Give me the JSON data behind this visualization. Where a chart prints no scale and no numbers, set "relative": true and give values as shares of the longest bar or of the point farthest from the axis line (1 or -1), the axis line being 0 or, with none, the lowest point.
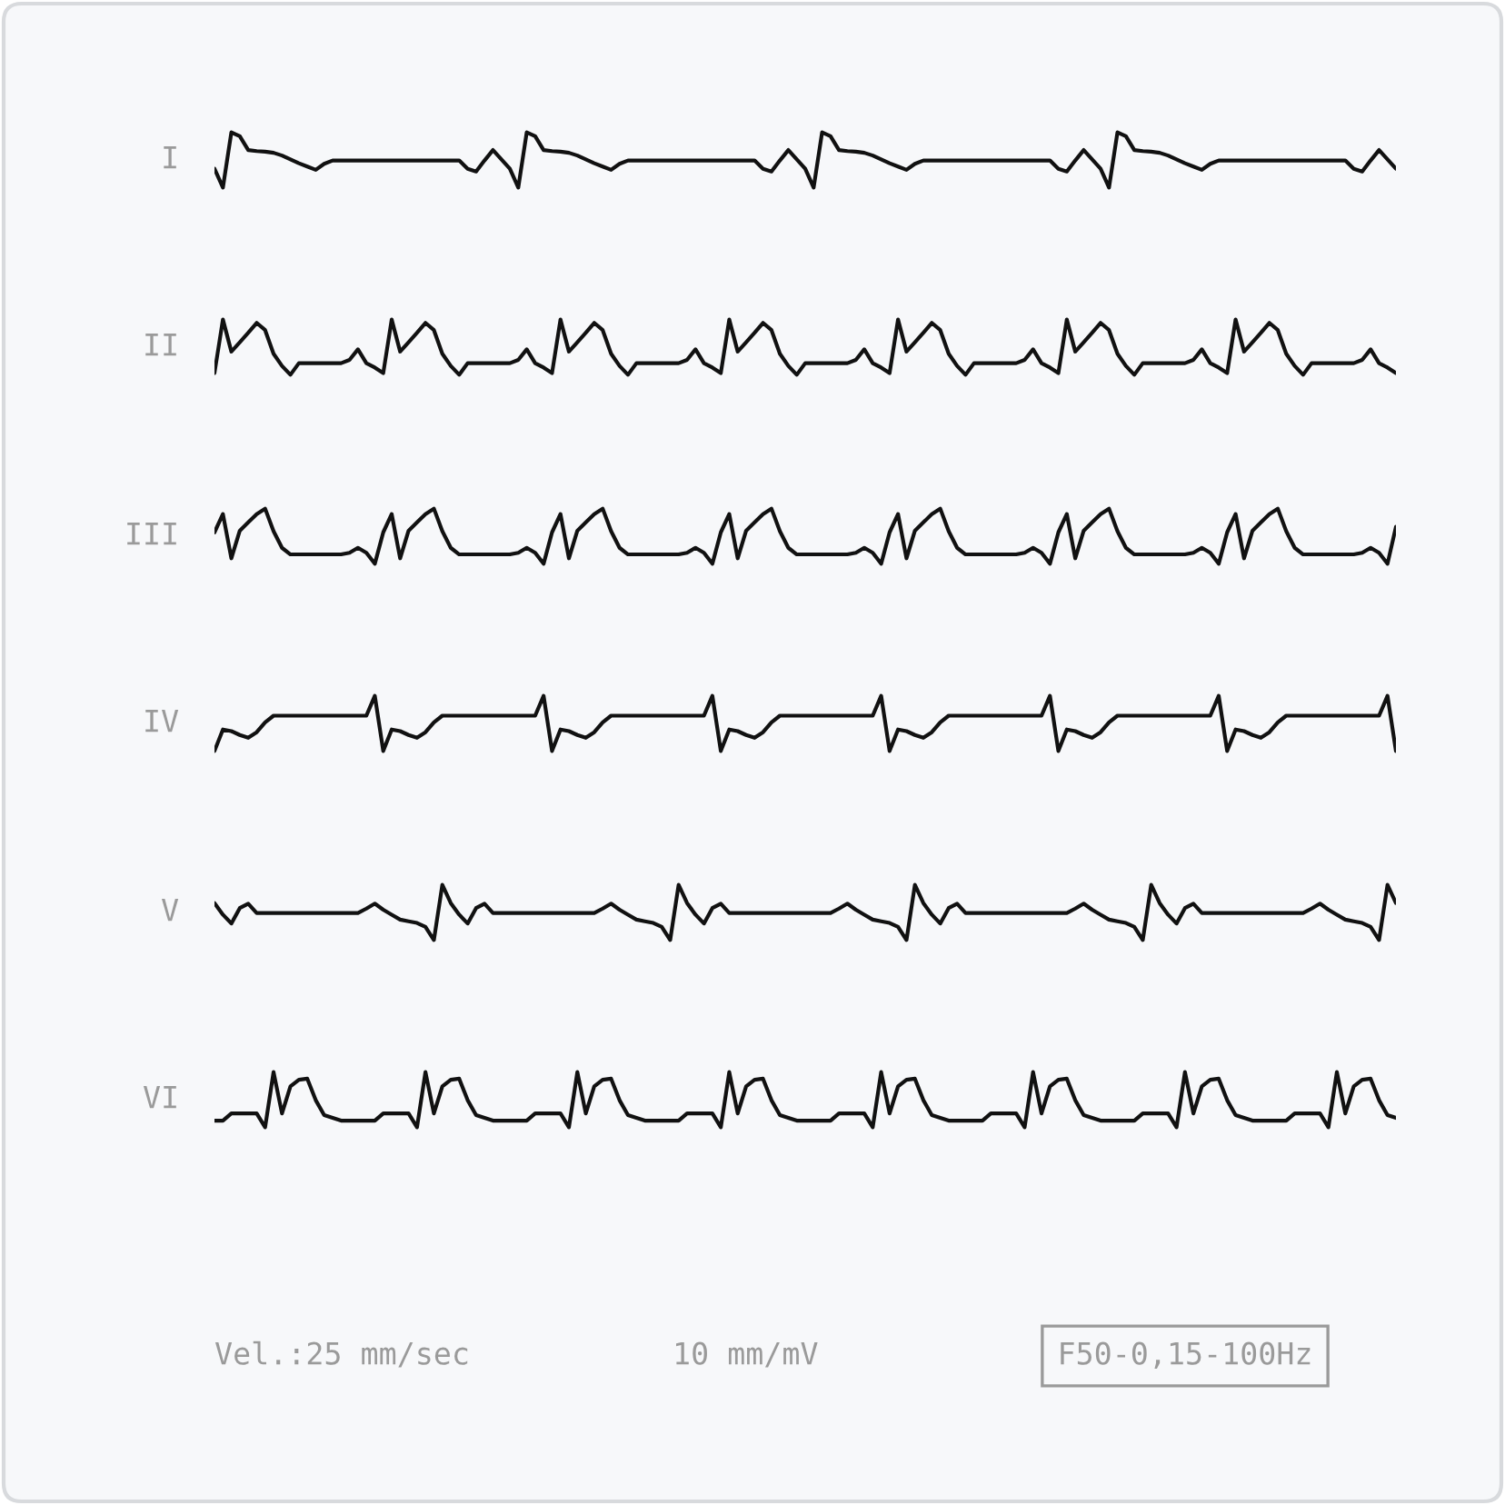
{
  "chart_data": [
    {
      "type": "line",
      "ylabel": "I",
      "relative": true,
      "categories": [
        null,
        null,
        null,
        null,
        null,
        null,
        null,
        null,
        null,
        null,
        null,
        null,
        null,
        null,
        null,
        null,
        null,
        null,
        null,
        null,
        null,
        null,
        null,
        null,
        null,
        null,
        null,
        null,
        null,
        null,
        null,
        null,
        null,
        null,
        null,
        null,
        null,
        null,
        null,
        null,
        null,
        null,
        null,
        null,
        null,
        null,
        null,
        null,
        null,
        null,
        null,
        null,
        null,
        null,
        null,
        null,
        null,
        null,
        null,
        null,
        null,
        null,
        null,
        null,
        null,
        null,
        null,
        null,
        null,
        null,
        null,
        null,
        null,
        null,
        null,
        null,
        null,
        null,
        null,
        null,
        null,
        null,
        null,
        null,
        null,
        null,
        null,
        null,
        null,
        null,
        null,
        null,
        null,
        null,
        null,
        null,
        null,
        null,
        null,
        null,
        null,
        null,
        null,
        null,
        null,
        null,
        null,
        null,
        null,
        null,
        null,
        null,
        null,
        null,
        null,
        null,
        null,
        null,
        null,
        null,
        null,
        null,
        null,
        null,
        null,
        null,
        null,
        null,
        null,
        null,
        null,
        null,
        null,
        null,
        null,
        null,
        null,
        null,
        null,
        null,
        null
      ],
      "series": [
        {
          "color": "#111111",
          "values": [
            0.34,
            0,
            1,
            0.93,
            0.68,
            0.66,
            0.65,
            0.63,
            0.58,
            0.51,
            0.44,
            0.38,
            0.32,
            0.43,
            0.49,
            0.49,
            0.49,
            0.49,
            0.49,
            0.49,
            0.49,
            0.49,
            0.49,
            0.49,
            0.49,
            0.49,
            0.49,
            0.49,
            0.49,
            0.49,
            0.34,
            0.29,
            0.49,
            0.68,
            0.51,
            0.34,
            0,
            1,
            0.93,
            0.68,
            0.66,
            0.65,
            0.63,
            0.58,
            0.51,
            0.44,
            0.38,
            0.32,
            0.43,
            0.49,
            0.49,
            0.49,
            0.49,
            0.49,
            0.49,
            0.49,
            0.49,
            0.49,
            0.49,
            0.49,
            0.49,
            0.49,
            0.49,
            0.49,
            0.49,
            0.34,
            0.29,
            0.49,
            0.68,
            0.51,
            0.34,
            0,
            1,
            0.93,
            0.68,
            0.66,
            0.65,
            0.63,
            0.58,
            0.51,
            0.44,
            0.38,
            0.32,
            0.43,
            0.49,
            0.49,
            0.49,
            0.49,
            0.49,
            0.49,
            0.49,
            0.49,
            0.49,
            0.49,
            0.49,
            0.49,
            0.49,
            0.49,
            0.49,
            0.49,
            0.34,
            0.29,
            0.49,
            0.68,
            0.51,
            0.34,
            0,
            1,
            0.93,
            0.68,
            0.66,
            0.65,
            0.63,
            0.58,
            0.51,
            0.44,
            0.38,
            0.32,
            0.43,
            0.49,
            0.49,
            0.49,
            0.49,
            0.49,
            0.49,
            0.49,
            0.49,
            0.49,
            0.49,
            0.49,
            0.49,
            0.49,
            0.49,
            0.49,
            0.49,
            0.34,
            0.29,
            0.49,
            0.68,
            0.51,
            0.34
          ]
        }
      ]
    },
    {
      "type": "line",
      "ylabel": "II",
      "relative": true,
      "categories": [
        null,
        null,
        null,
        null,
        null,
        null,
        null,
        null,
        null,
        null,
        null,
        null,
        null,
        null,
        null,
        null,
        null,
        null,
        null,
        null,
        null,
        null,
        null,
        null,
        null,
        null,
        null,
        null,
        null,
        null,
        null,
        null,
        null,
        null,
        null,
        null,
        null,
        null,
        null,
        null,
        null,
        null,
        null,
        null,
        null,
        null,
        null,
        null,
        null,
        null,
        null,
        null,
        null,
        null,
        null,
        null,
        null,
        null,
        null,
        null,
        null,
        null,
        null,
        null,
        null,
        null,
        null,
        null,
        null,
        null,
        null,
        null,
        null,
        null,
        null,
        null,
        null,
        null,
        null,
        null,
        null,
        null,
        null,
        null,
        null,
        null,
        null,
        null,
        null,
        null,
        null,
        null,
        null,
        null,
        null,
        null,
        null,
        null,
        null,
        null,
        null,
        null,
        null,
        null,
        null,
        null,
        null,
        null,
        null,
        null,
        null,
        null,
        null,
        null,
        null,
        null,
        null,
        null,
        null,
        null,
        null,
        null,
        null,
        null,
        null,
        null,
        null,
        null,
        null,
        null,
        null,
        null,
        null,
        null,
        null,
        null,
        null,
        null,
        null,
        null,
        null
      ],
      "series": [
        {
          "color": "#111111",
          "values": [
            0.03,
            1,
            0.42,
            0.59,
            0.76,
            0.94,
            0.81,
            0.38,
            0.16,
            0,
            0.21,
            0.21,
            0.21,
            0.21,
            0.21,
            0.21,
            0.27,
            0.46,
            0.21,
            0.13,
            0.03,
            1,
            0.42,
            0.59,
            0.76,
            0.94,
            0.81,
            0.38,
            0.16,
            0,
            0.21,
            0.21,
            0.21,
            0.21,
            0.21,
            0.21,
            0.27,
            0.46,
            0.21,
            0.13,
            0.03,
            1,
            0.42,
            0.59,
            0.76,
            0.94,
            0.81,
            0.38,
            0.16,
            0,
            0.21,
            0.21,
            0.21,
            0.21,
            0.21,
            0.21,
            0.27,
            0.46,
            0.21,
            0.13,
            0.03,
            1,
            0.42,
            0.59,
            0.76,
            0.94,
            0.81,
            0.38,
            0.16,
            0,
            0.21,
            0.21,
            0.21,
            0.21,
            0.21,
            0.21,
            0.27,
            0.46,
            0.21,
            0.13,
            0.03,
            1,
            0.42,
            0.59,
            0.76,
            0.94,
            0.81,
            0.38,
            0.16,
            0,
            0.21,
            0.21,
            0.21,
            0.21,
            0.21,
            0.21,
            0.27,
            0.46,
            0.21,
            0.13,
            0.03,
            1,
            0.42,
            0.59,
            0.76,
            0.94,
            0.81,
            0.38,
            0.16,
            0,
            0.21,
            0.21,
            0.21,
            0.21,
            0.21,
            0.21,
            0.27,
            0.46,
            0.21,
            0.13,
            0.03,
            1,
            0.42,
            0.59,
            0.76,
            0.94,
            0.81,
            0.38,
            0.16,
            0,
            0.21,
            0.21,
            0.21,
            0.21,
            0.21,
            0.21,
            0.27,
            0.46,
            0.21,
            0.13,
            0.03
          ]
        }
      ]
    },
    {
      "type": "line",
      "ylabel": "III",
      "relative": true,
      "categories": [
        null,
        null,
        null,
        null,
        null,
        null,
        null,
        null,
        null,
        null,
        null,
        null,
        null,
        null,
        null,
        null,
        null,
        null,
        null,
        null,
        null,
        null,
        null,
        null,
        null,
        null,
        null,
        null,
        null,
        null,
        null,
        null,
        null,
        null,
        null,
        null,
        null,
        null,
        null,
        null,
        null,
        null,
        null,
        null,
        null,
        null,
        null,
        null,
        null,
        null,
        null,
        null,
        null,
        null,
        null,
        null,
        null,
        null,
        null,
        null,
        null,
        null,
        null,
        null,
        null,
        null,
        null,
        null,
        null,
        null,
        null,
        null,
        null,
        null,
        null,
        null,
        null,
        null,
        null,
        null,
        null,
        null,
        null,
        null,
        null,
        null,
        null,
        null,
        null,
        null,
        null,
        null,
        null,
        null,
        null,
        null,
        null,
        null,
        null,
        null,
        null,
        null,
        null,
        null,
        null,
        null,
        null,
        null,
        null,
        null,
        null,
        null,
        null,
        null,
        null,
        null,
        null,
        null,
        null,
        null,
        null,
        null,
        null,
        null,
        null,
        null,
        null,
        null,
        null,
        null,
        null,
        null,
        null,
        null,
        null,
        null,
        null,
        null,
        null,
        null,
        null
      ],
      "series": [
        {
          "color": "#111111",
          "values": [
            0.57,
            0.9,
            0.1,
            0.6,
            0.75,
            0.9,
            1,
            0.59,
            0.29,
            0.17,
            0.17,
            0.17,
            0.17,
            0.17,
            0.17,
            0.17,
            0.2,
            0.29,
            0.2,
            0,
            0.57,
            0.9,
            0.1,
            0.6,
            0.75,
            0.9,
            1,
            0.59,
            0.29,
            0.17,
            0.17,
            0.17,
            0.17,
            0.17,
            0.17,
            0.17,
            0.2,
            0.29,
            0.2,
            0,
            0.57,
            0.9,
            0.1,
            0.6,
            0.75,
            0.9,
            1,
            0.59,
            0.29,
            0.17,
            0.17,
            0.17,
            0.17,
            0.17,
            0.17,
            0.17,
            0.2,
            0.29,
            0.2,
            0,
            0.57,
            0.9,
            0.1,
            0.6,
            0.75,
            0.9,
            1,
            0.59,
            0.29,
            0.17,
            0.17,
            0.17,
            0.17,
            0.17,
            0.17,
            0.17,
            0.2,
            0.29,
            0.2,
            0,
            0.57,
            0.9,
            0.1,
            0.6,
            0.75,
            0.9,
            1,
            0.59,
            0.29,
            0.17,
            0.17,
            0.17,
            0.17,
            0.17,
            0.17,
            0.17,
            0.2,
            0.29,
            0.2,
            0,
            0.57,
            0.9,
            0.1,
            0.6,
            0.75,
            0.9,
            1,
            0.59,
            0.29,
            0.17,
            0.17,
            0.17,
            0.17,
            0.17,
            0.17,
            0.17,
            0.2,
            0.29,
            0.2,
            0,
            0.57,
            0.9,
            0.1,
            0.6,
            0.75,
            0.9,
            1,
            0.59,
            0.29,
            0.17,
            0.17,
            0.17,
            0.17,
            0.17,
            0.17,
            0.17,
            0.2,
            0.29,
            0.2,
            0,
            0.67
          ]
        }
      ]
    },
    {
      "type": "line",
      "ylabel": "IV",
      "relative": true,
      "categories": [
        null,
        null,
        null,
        null,
        null,
        null,
        null,
        null,
        null,
        null,
        null,
        null,
        null,
        null,
        null,
        null,
        null,
        null,
        null,
        null,
        null,
        null,
        null,
        null,
        null,
        null,
        null,
        null,
        null,
        null,
        null,
        null,
        null,
        null,
        null,
        null,
        null,
        null,
        null,
        null,
        null,
        null,
        null,
        null,
        null,
        null,
        null,
        null,
        null,
        null,
        null,
        null,
        null,
        null,
        null,
        null,
        null,
        null,
        null,
        null,
        null,
        null,
        null,
        null,
        null,
        null,
        null,
        null,
        null,
        null,
        null,
        null,
        null,
        null,
        null,
        null,
        null,
        null,
        null,
        null,
        null,
        null,
        null,
        null,
        null,
        null,
        null,
        null,
        null,
        null,
        null,
        null,
        null,
        null,
        null,
        null,
        null,
        null,
        null,
        null,
        null,
        null,
        null,
        null,
        null,
        null,
        null,
        null,
        null,
        null,
        null,
        null,
        null,
        null,
        null,
        null,
        null,
        null,
        null,
        null,
        null,
        null,
        null,
        null,
        null,
        null,
        null,
        null,
        null,
        null,
        null,
        null,
        null,
        null,
        null,
        null,
        null,
        null,
        null,
        null,
        null
      ],
      "series": [
        {
          "color": "#111111",
          "values": [
            0,
            0.39,
            0.36,
            0.29,
            0.24,
            0.34,
            0.52,
            0.64,
            0.64,
            0.64,
            0.64,
            0.64,
            0.64,
            0.64,
            0.64,
            0.64,
            0.64,
            0.64,
            0.64,
            1,
            0,
            0.39,
            0.36,
            0.29,
            0.24,
            0.34,
            0.52,
            0.64,
            0.64,
            0.64,
            0.64,
            0.64,
            0.64,
            0.64,
            0.64,
            0.64,
            0.64,
            0.64,
            0.64,
            1,
            0,
            0.39,
            0.36,
            0.29,
            0.24,
            0.34,
            0.52,
            0.64,
            0.64,
            0.64,
            0.64,
            0.64,
            0.64,
            0.64,
            0.64,
            0.64,
            0.64,
            0.64,
            0.64,
            1,
            0,
            0.39,
            0.36,
            0.29,
            0.24,
            0.34,
            0.52,
            0.64,
            0.64,
            0.64,
            0.64,
            0.64,
            0.64,
            0.64,
            0.64,
            0.64,
            0.64,
            0.64,
            0.64,
            1,
            0,
            0.39,
            0.36,
            0.29,
            0.24,
            0.34,
            0.52,
            0.64,
            0.64,
            0.64,
            0.64,
            0.64,
            0.64,
            0.64,
            0.64,
            0.64,
            0.64,
            0.64,
            0.64,
            1,
            0,
            0.39,
            0.36,
            0.29,
            0.24,
            0.34,
            0.52,
            0.64,
            0.64,
            0.64,
            0.64,
            0.64,
            0.64,
            0.64,
            0.64,
            0.64,
            0.64,
            0.64,
            0.64,
            1,
            0,
            0.39,
            0.36,
            0.29,
            0.24,
            0.34,
            0.52,
            0.64,
            0.64,
            0.64,
            0.64,
            0.64,
            0.64,
            0.64,
            0.64,
            0.64,
            0.64,
            0.64,
            0.64,
            1,
            0
          ]
        }
      ]
    },
    {
      "type": "line",
      "ylabel": "V",
      "relative": true,
      "categories": [
        null,
        null,
        null,
        null,
        null,
        null,
        null,
        null,
        null,
        null,
        null,
        null,
        null,
        null,
        null,
        null,
        null,
        null,
        null,
        null,
        null,
        null,
        null,
        null,
        null,
        null,
        null,
        null,
        null,
        null,
        null,
        null,
        null,
        null,
        null,
        null,
        null,
        null,
        null,
        null,
        null,
        null,
        null,
        null,
        null,
        null,
        null,
        null,
        null,
        null,
        null,
        null,
        null,
        null,
        null,
        null,
        null,
        null,
        null,
        null,
        null,
        null,
        null,
        null,
        null,
        null,
        null,
        null,
        null,
        null,
        null,
        null,
        null,
        null,
        null,
        null,
        null,
        null,
        null,
        null,
        null,
        null,
        null,
        null,
        null,
        null,
        null,
        null,
        null,
        null,
        null,
        null,
        null,
        null,
        null,
        null,
        null,
        null,
        null,
        null,
        null,
        null,
        null,
        null,
        null,
        null,
        null,
        null,
        null,
        null,
        null,
        null,
        null,
        null,
        null,
        null,
        null,
        null,
        null,
        null,
        null,
        null,
        null,
        null,
        null,
        null,
        null,
        null,
        null,
        null,
        null,
        null,
        null,
        null,
        null,
        null,
        null,
        null,
        null,
        null,
        null
      ],
      "series": [
        {
          "color": "#111111",
          "values": [
            0.67,
            0.46,
            0.3,
            0.58,
            0.66,
            0.49,
            0.49,
            0.49,
            0.49,
            0.49,
            0.49,
            0.49,
            0.49,
            0.49,
            0.49,
            0.49,
            0.49,
            0.49,
            0.57,
            0.66,
            0.55,
            0.46,
            0.37,
            0.34,
            0.31,
            0.24,
            0,
            1,
            0.67,
            0.46,
            0.3,
            0.58,
            0.66,
            0.49,
            0.49,
            0.49,
            0.49,
            0.49,
            0.49,
            0.49,
            0.49,
            0.49,
            0.49,
            0.49,
            0.49,
            0.49,
            0.57,
            0.66,
            0.55,
            0.46,
            0.37,
            0.34,
            0.31,
            0.24,
            0,
            1,
            0.67,
            0.46,
            0.3,
            0.58,
            0.66,
            0.49,
            0.49,
            0.49,
            0.49,
            0.49,
            0.49,
            0.49,
            0.49,
            0.49,
            0.49,
            0.49,
            0.49,
            0.49,
            0.57,
            0.66,
            0.55,
            0.46,
            0.37,
            0.34,
            0.31,
            0.24,
            0,
            1,
            0.67,
            0.46,
            0.3,
            0.58,
            0.66,
            0.49,
            0.49,
            0.49,
            0.49,
            0.49,
            0.49,
            0.49,
            0.49,
            0.49,
            0.49,
            0.49,
            0.49,
            0.49,
            0.57,
            0.66,
            0.55,
            0.46,
            0.37,
            0.34,
            0.31,
            0.24,
            0,
            1,
            0.67,
            0.46,
            0.3,
            0.58,
            0.66,
            0.49,
            0.49,
            0.49,
            0.49,
            0.49,
            0.49,
            0.49,
            0.49,
            0.49,
            0.49,
            0.49,
            0.49,
            0.49,
            0.57,
            0.66,
            0.55,
            0.46,
            0.37,
            0.34,
            0.31,
            0.24,
            0,
            1,
            0.67
          ]
        }
      ]
    },
    {
      "type": "line",
      "ylabel": "VI",
      "relative": true,
      "categories": [
        null,
        null,
        null,
        null,
        null,
        null,
        null,
        null,
        null,
        null,
        null,
        null,
        null,
        null,
        null,
        null,
        null,
        null,
        null,
        null,
        null,
        null,
        null,
        null,
        null,
        null,
        null,
        null,
        null,
        null,
        null,
        null,
        null,
        null,
        null,
        null,
        null,
        null,
        null,
        null,
        null,
        null,
        null,
        null,
        null,
        null,
        null,
        null,
        null,
        null,
        null,
        null,
        null,
        null,
        null,
        null,
        null,
        null,
        null,
        null,
        null,
        null,
        null,
        null,
        null,
        null,
        null,
        null,
        null,
        null,
        null,
        null,
        null,
        null,
        null,
        null,
        null,
        null,
        null,
        null,
        null,
        null,
        null,
        null,
        null,
        null,
        null,
        null,
        null,
        null,
        null,
        null,
        null,
        null,
        null,
        null,
        null,
        null,
        null,
        null,
        null,
        null,
        null,
        null,
        null,
        null,
        null,
        null,
        null,
        null,
        null,
        null,
        null,
        null,
        null,
        null,
        null,
        null,
        null,
        null,
        null,
        null,
        null,
        null,
        null,
        null,
        null,
        null,
        null,
        null,
        null,
        null,
        null,
        null,
        null,
        null,
        null,
        null,
        null,
        null,
        null
      ],
      "series": [
        {
          "color": "#111111",
          "values": [
            0.12,
            0.12,
            0.25,
            0.25,
            0.25,
            0.25,
            0,
            1,
            0.25,
            0.74,
            0.86,
            0.88,
            0.49,
            0.22,
            0.17,
            0.12,
            0.12,
            0.12,
            0.12,
            0.12,
            0.25,
            0.25,
            0.25,
            0.25,
            0,
            1,
            0.25,
            0.74,
            0.86,
            0.88,
            0.49,
            0.22,
            0.17,
            0.12,
            0.12,
            0.12,
            0.12,
            0.12,
            0.25,
            0.25,
            0.25,
            0.25,
            0,
            1,
            0.25,
            0.74,
            0.86,
            0.88,
            0.49,
            0.22,
            0.17,
            0.12,
            0.12,
            0.12,
            0.12,
            0.12,
            0.25,
            0.25,
            0.25,
            0.25,
            0,
            1,
            0.25,
            0.74,
            0.86,
            0.88,
            0.49,
            0.22,
            0.17,
            0.12,
            0.12,
            0.12,
            0.12,
            0.12,
            0.25,
            0.25,
            0.25,
            0.25,
            0,
            1,
            0.25,
            0.74,
            0.86,
            0.88,
            0.49,
            0.22,
            0.17,
            0.12,
            0.12,
            0.12,
            0.12,
            0.12,
            0.25,
            0.25,
            0.25,
            0.25,
            0,
            1,
            0.25,
            0.74,
            0.86,
            0.88,
            0.49,
            0.22,
            0.17,
            0.12,
            0.12,
            0.12,
            0.12,
            0.12,
            0.25,
            0.25,
            0.25,
            0.25,
            0,
            1,
            0.25,
            0.74,
            0.86,
            0.88,
            0.49,
            0.22,
            0.17,
            0.12,
            0.12,
            0.12,
            0.12,
            0.12,
            0.25,
            0.25,
            0.25,
            0.25,
            0,
            1,
            0.25,
            0.74,
            0.86,
            0.88,
            0.49,
            0.22,
            0.17
          ]
        }
      ],
      "annotations": [
        "Vel.:25 mm/sec",
        "10 mm/mV",
        "F50-0,15-100Hz"
      ]
    }
  ]
}
